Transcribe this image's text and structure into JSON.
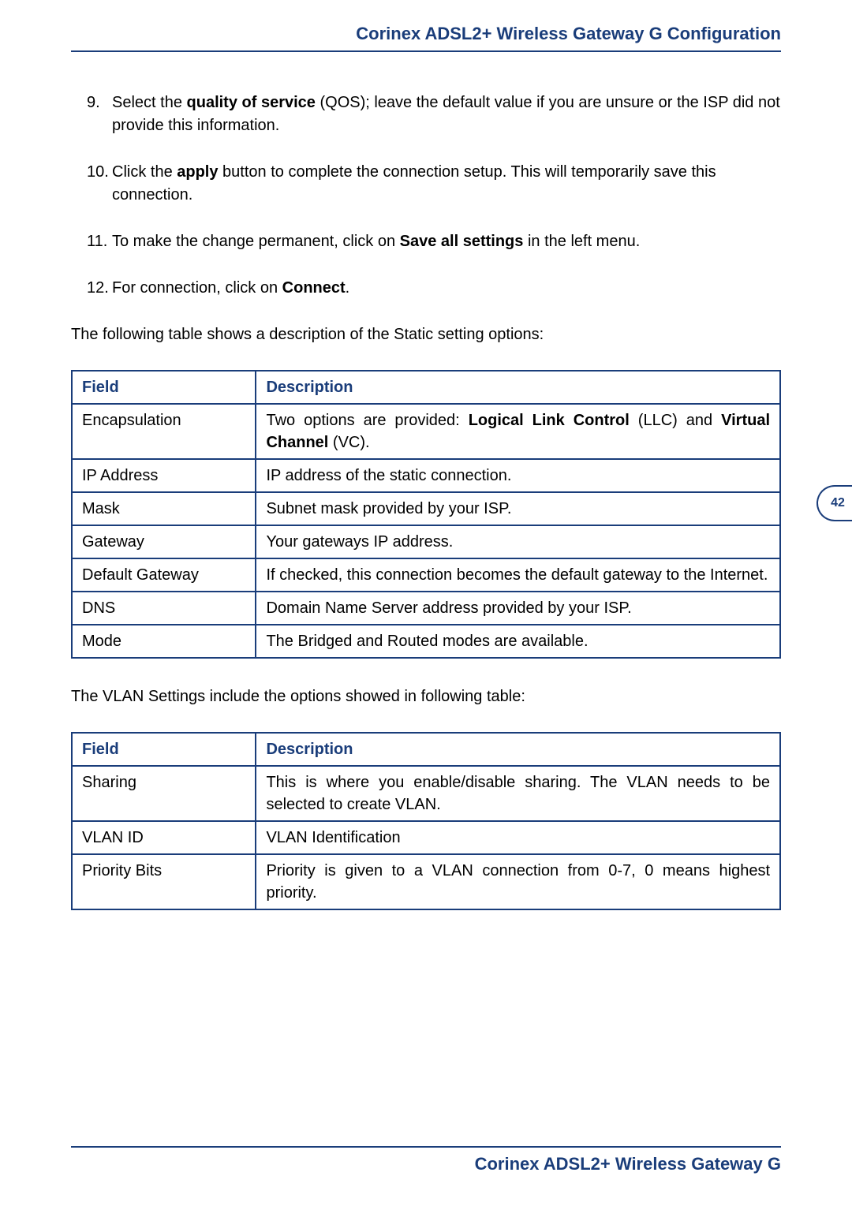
{
  "colors": {
    "brand": "#1a3d7a",
    "text": "#000000",
    "background": "#ffffff"
  },
  "header": {
    "title": "Corinex ADSL2+ Wireless Gateway G Configuration"
  },
  "page_number": "42",
  "steps": [
    {
      "num": "9.",
      "prefix": "Select the ",
      "bold1": "quality of service",
      "mid": " (QOS); leave the default value if you are unsure or the ISP did not provide this information.",
      "bold2": "",
      "suffix": ""
    },
    {
      "num": "10.",
      "prefix": "Click the ",
      "bold1": "apply",
      "mid": " button to complete the connection setup.  This will temporarily save this connection.",
      "bold2": "",
      "suffix": ""
    },
    {
      "num": "11.",
      "prefix": "To make the change permanent, click on ",
      "bold1": "Save all settings",
      "mid": " in the left menu.",
      "bold2": "",
      "suffix": ""
    },
    {
      "num": "12.",
      "prefix": "For connection, click on ",
      "bold1": "Connect",
      "mid": ".",
      "bold2": "",
      "suffix": ""
    }
  ],
  "intro1": "The following table shows a description of the Static setting options:",
  "table1": {
    "headers": {
      "field": "Field",
      "desc": "Description"
    },
    "rows": [
      {
        "field": "Encapsulation",
        "desc_pre": "Two options are provided: ",
        "desc_b1": "Logical Link Control",
        "desc_mid": " (LLC) and ",
        "desc_b2": "Virtual Channel",
        "desc_post": " (VC)."
      },
      {
        "field": "IP Address",
        "desc": "IP address of the static connection."
      },
      {
        "field": "Mask",
        "desc": "Subnet mask provided by your ISP."
      },
      {
        "field": "Gateway",
        "desc": "Your gateways IP address."
      },
      {
        "field": "Default Gateway",
        "desc": "If checked, this connection becomes the default gateway to the Internet."
      },
      {
        "field": "DNS",
        "desc": "Domain Name Server address provided by your ISP."
      },
      {
        "field": "Mode",
        "desc": "The Bridged and Routed modes are available."
      }
    ]
  },
  "intro2": "The VLAN Settings include the options showed in following table:",
  "table2": {
    "headers": {
      "field": "Field",
      "desc": "Description"
    },
    "rows": [
      {
        "field": "Sharing",
        "desc": "This is where you enable/disable sharing. The VLAN needs to be selected to create VLAN."
      },
      {
        "field": "VLAN ID",
        "desc": "VLAN Identification"
      },
      {
        "field": "Priority Bits",
        "desc": "Priority is given to a VLAN connection from 0-7, 0 means highest priority."
      }
    ]
  },
  "footer": {
    "title": "Corinex ADSL2+ Wireless Gateway G"
  }
}
